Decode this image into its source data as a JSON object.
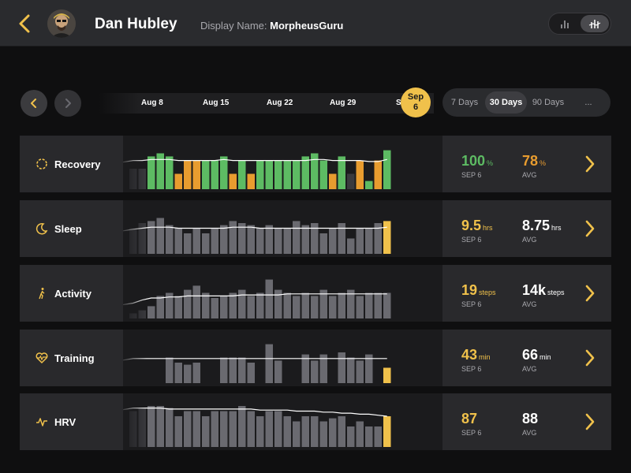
{
  "header": {
    "user_name": "Dan Hubley",
    "display_name_label": "Display Name:",
    "display_name_value": "MorpheusGuru"
  },
  "timeline": {
    "labels": [
      "Aug 8",
      "Aug 15",
      "Aug 22",
      "Aug 29",
      "S"
    ],
    "current_month": "Sep",
    "current_day": "6"
  },
  "ranges": [
    "7 Days",
    "30 Days",
    "90 Days",
    "..."
  ],
  "active_range": "30 Days",
  "colors": {
    "accent": "#f0c14b",
    "green": "#5dbb63",
    "orange": "#e89c2f",
    "gray": "#6a6a70"
  },
  "metrics": [
    {
      "name": "Recovery",
      "icon": "recovery-ring-icon",
      "current": "100",
      "current_unit": "%",
      "current_label": "SEP 6",
      "current_color": "#5dbb63",
      "avg": "78",
      "avg_unit": "%",
      "avg_label": "AVG",
      "avg_color": "#e89c2f",
      "bars": [
        20,
        20,
        32,
        35,
        32,
        15,
        28,
        28,
        28,
        28,
        32,
        15,
        28,
        15,
        28,
        28,
        28,
        28,
        28,
        32,
        35,
        28,
        15,
        32,
        15,
        28,
        8,
        28,
        38
      ],
      "bar_colors": [
        "d",
        "d",
        "g",
        "g",
        "g",
        "o",
        "o",
        "o",
        "g",
        "g",
        "g",
        "o",
        "g",
        "o",
        "g",
        "g",
        "g",
        "g",
        "g",
        "g",
        "g",
        "g",
        "o",
        "g",
        "d",
        "o",
        "g",
        "o",
        "g"
      ],
      "trend": [
        28,
        28,
        29,
        29,
        29,
        28,
        28,
        28,
        28,
        28,
        29,
        28,
        28,
        28,
        28,
        28,
        28,
        28,
        28,
        28,
        29,
        29,
        28,
        28,
        28,
        28,
        27,
        27,
        29
      ]
    },
    {
      "name": "Sleep",
      "icon": "moon-icon",
      "current": "9.5",
      "current_unit": "hrs",
      "current_label": "SEP 6",
      "current_color": "#f0c14b",
      "avg": "8.75",
      "avg_unit": "hrs",
      "avg_label": "AVG",
      "avg_color": "#ffffff",
      "bars": [
        25,
        30,
        32,
        35,
        28,
        25,
        20,
        25,
        20,
        25,
        28,
        32,
        30,
        28,
        25,
        28,
        25,
        25,
        32,
        28,
        30,
        20,
        25,
        30,
        15,
        25,
        25,
        30,
        32
      ],
      "bar_colors": [
        "d",
        "d",
        "n",
        "n",
        "n",
        "n",
        "n",
        "n",
        "n",
        "n",
        "n",
        "n",
        "n",
        "n",
        "n",
        "n",
        "n",
        "n",
        "n",
        "n",
        "n",
        "n",
        "n",
        "n",
        "n",
        "n",
        "n",
        "n",
        "y"
      ],
      "trend": [
        24,
        25,
        26,
        26,
        26,
        25,
        25,
        25,
        25,
        25,
        25,
        26,
        26,
        26,
        25,
        25,
        25,
        25,
        25,
        25,
        25,
        25,
        25,
        25,
        25,
        25,
        25,
        25,
        26
      ]
    },
    {
      "name": "Activity",
      "icon": "walking-icon",
      "current": "19",
      "current_unit": "steps",
      "current_label": "SEP 6",
      "current_color": "#f0c14b",
      "avg": "14k",
      "avg_unit": "steps",
      "avg_label": "AVG",
      "avg_color": "#ffffff",
      "bars": [
        5,
        8,
        12,
        22,
        25,
        22,
        28,
        32,
        25,
        20,
        22,
        25,
        28,
        22,
        25,
        38,
        28,
        25,
        22,
        25,
        22,
        28,
        22,
        25,
        28,
        22,
        25,
        25,
        25
      ],
      "bar_colors": [
        "d",
        "d",
        "n",
        "n",
        "n",
        "n",
        "n",
        "n",
        "n",
        "n",
        "n",
        "n",
        "n",
        "n",
        "n",
        "n",
        "n",
        "n",
        "n",
        "n",
        "n",
        "n",
        "n",
        "n",
        "n",
        "n",
        "n",
        "n",
        "n"
      ],
      "trend": [
        15,
        18,
        20,
        20,
        21,
        21,
        22,
        22,
        22,
        22,
        22,
        22,
        23,
        23,
        23,
        23,
        23,
        24,
        24,
        24,
        24,
        24,
        24,
        24,
        24,
        24,
        24,
        24,
        24
      ]
    },
    {
      "name": "Training",
      "icon": "heart-rate-icon",
      "current": "43",
      "current_unit": "min",
      "current_label": "SEP 6",
      "current_color": "#f0c14b",
      "avg": "66",
      "avg_unit": "min",
      "avg_label": "AVG",
      "avg_color": "#ffffff",
      "bars": [
        0,
        0,
        0,
        0,
        25,
        20,
        18,
        20,
        0,
        0,
        25,
        25,
        25,
        20,
        0,
        38,
        22,
        0,
        0,
        28,
        22,
        28,
        0,
        30,
        25,
        22,
        28,
        0,
        15
      ],
      "bar_colors": [
        "d",
        "d",
        "n",
        "n",
        "n",
        "n",
        "n",
        "n",
        "n",
        "n",
        "n",
        "n",
        "n",
        "n",
        "n",
        "n",
        "n",
        "n",
        "n",
        "n",
        "n",
        "n",
        "n",
        "n",
        "n",
        "n",
        "n",
        "n",
        "y"
      ],
      "trend": [
        24,
        24,
        24,
        24,
        24,
        24,
        24,
        24,
        24,
        24,
        24,
        24,
        24,
        24,
        24,
        24,
        24,
        24,
        24,
        24,
        24,
        24,
        24,
        24,
        24,
        24,
        24,
        24,
        24
      ]
    },
    {
      "name": "HRV",
      "icon": "pulse-icon",
      "current": "87",
      "current_unit": "",
      "current_label": "SEP 6",
      "current_color": "#f0c14b",
      "avg": "88",
      "avg_unit": "",
      "avg_label": "AVG",
      "avg_color": "#ffffff",
      "bars": [
        35,
        38,
        40,
        40,
        38,
        30,
        35,
        35,
        30,
        35,
        35,
        35,
        40,
        35,
        30,
        35,
        35,
        30,
        25,
        30,
        30,
        25,
        28,
        30,
        20,
        25,
        20,
        20,
        30
      ],
      "bar_colors": [
        "d",
        "d",
        "n",
        "n",
        "n",
        "n",
        "n",
        "n",
        "n",
        "n",
        "n",
        "n",
        "n",
        "n",
        "n",
        "n",
        "n",
        "n",
        "n",
        "n",
        "n",
        "n",
        "n",
        "n",
        "n",
        "n",
        "n",
        "n",
        "y"
      ],
      "trend": [
        38,
        38,
        38,
        38,
        37,
        37,
        37,
        37,
        37,
        37,
        37,
        37,
        37,
        37,
        36,
        36,
        36,
        36,
        35,
        35,
        35,
        34,
        34,
        33,
        33,
        32,
        32,
        31,
        30
      ]
    }
  ]
}
